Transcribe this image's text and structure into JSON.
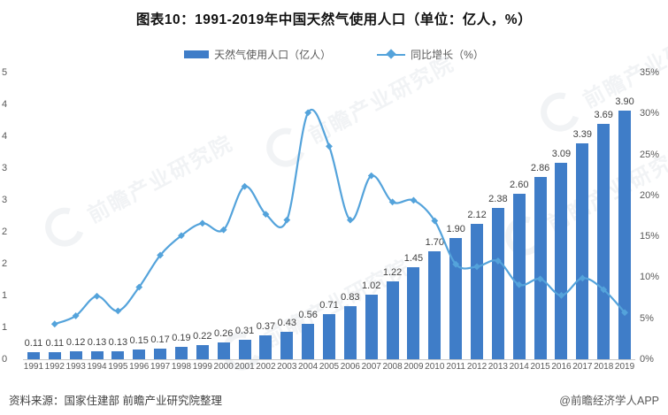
{
  "title": "图表10：1991-2019年中国天然气使用人口（单位：亿人，%）",
  "legend": {
    "bar_label": "天然气使用人口（亿人）",
    "line_label": "同比增长（%）",
    "position": "top"
  },
  "colors": {
    "bar": "#3F7DC8",
    "line": "#54A3DB",
    "tick_text": "#595959",
    "value_label_text": "#404040",
    "axis_line": "#C9C9C9",
    "watermark": "#E7EAEE"
  },
  "axes": {
    "left_tick_labels": [
      "5",
      "4",
      "4",
      "3",
      "3",
      "2",
      "2",
      "1",
      "1",
      "0"
    ],
    "right_tick_labels": [
      "35%",
      "30%",
      "25%",
      "20%",
      "15%",
      "10%",
      "5%",
      "0%"
    ]
  },
  "chart_data": {
    "type": "bar",
    "subtype": "bar+line combo, dual axis",
    "title": "图表10：1991-2019年中国天然气使用人口（单位：亿人，%）",
    "categories": [
      "1991",
      "1992",
      "1993",
      "1994",
      "1995",
      "1996",
      "1997",
      "1998",
      "1999",
      "2000",
      "2001",
      "2002",
      "2003",
      "2004",
      "2005",
      "2006",
      "2007",
      "2008",
      "2009",
      "2010",
      "2011",
      "2012",
      "2013",
      "2014",
      "2015",
      "2016",
      "2017",
      "2018",
      "2019"
    ],
    "series": [
      {
        "name": "天然气使用人口（亿人）",
        "type": "bar",
        "axis": "left",
        "values": [
          0.11,
          0.11,
          0.12,
          0.13,
          0.13,
          0.15,
          0.17,
          0.19,
          0.22,
          0.26,
          0.31,
          0.37,
          0.43,
          0.56,
          0.71,
          0.83,
          1.02,
          1.22,
          1.45,
          1.7,
          1.9,
          2.12,
          2.38,
          2.6,
          2.86,
          3.09,
          3.39,
          3.69,
          3.9
        ],
        "labels": [
          "0.11",
          "0.11",
          "0.12",
          "0.13",
          "0.13",
          "0.15",
          "0.17",
          "0.19",
          "0.22",
          "0.26",
          "0.31",
          "0.37",
          "0.43",
          "0.56",
          "0.71",
          "0.83",
          "1.02",
          "1.22",
          "1.45",
          "1.70",
          "1.90",
          "2.12",
          "2.38",
          "2.60",
          "2.86",
          "3.09",
          "3.39",
          "3.69",
          "3.90"
        ]
      },
      {
        "name": "同比增长（%）",
        "type": "line",
        "axis": "right",
        "values": [
          null,
          4.3,
          5.3,
          7.7,
          5.9,
          8.8,
          12.7,
          15.1,
          16.6,
          15.8,
          21.1,
          17.7,
          17.0,
          30.1,
          26.0,
          17.0,
          22.4,
          19.2,
          19.4,
          16.9,
          11.6,
          11.3,
          12.0,
          9.1,
          9.8,
          7.8,
          9.9,
          8.5,
          5.7
        ]
      }
    ],
    "left_axis": {
      "min": 0,
      "max": 4.5,
      "displayed_tick_labels": [
        "5",
        "4",
        "4",
        "3",
        "3",
        "2",
        "2",
        "1",
        "1",
        "0"
      ]
    },
    "right_axis": {
      "min": 0,
      "max": 35,
      "displayed_tick_labels": [
        "35%",
        "30%",
        "25%",
        "20%",
        "15%",
        "10%",
        "5%",
        "0%"
      ]
    },
    "grid": false,
    "legend_position": "top"
  },
  "watermark": {
    "text": "前瞻产业研究院"
  },
  "footer": {
    "source": "资料来源：国家住建部 前瞻产业研究院整理",
    "credit": "@前瞻经济学人APP"
  }
}
